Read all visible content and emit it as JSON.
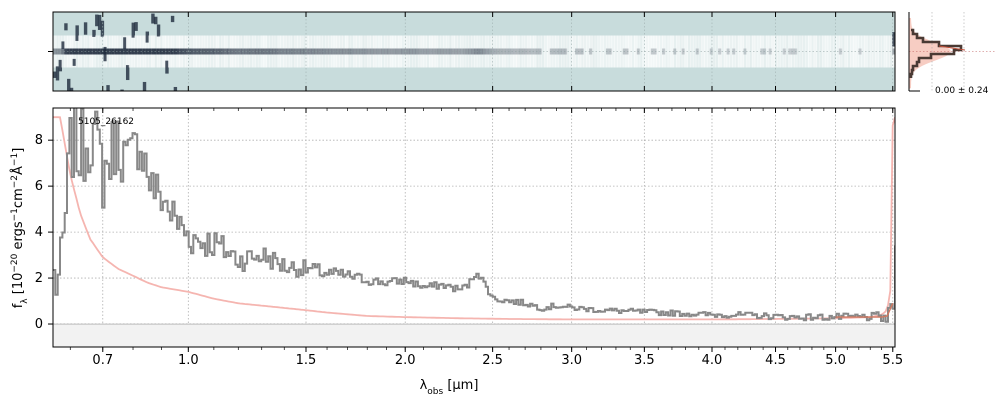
{
  "chart_data": [
    {
      "type": "heatmap",
      "panel": "2d-spectrum",
      "description_free": true,
      "colors": {
        "background": "#c8dcdc",
        "dark": "#1e2a3c",
        "light": "#ffffff"
      },
      "trace_row_fraction": 0.5
    },
    {
      "type": "line",
      "panel": "spatial-profile",
      "annotation": "0.00 ± 0.24",
      "colors": {
        "model": "#f4b8aa",
        "profile": "#4a3a34",
        "data": "#c0503a"
      }
    },
    {
      "type": "line",
      "panel": "1d-spectrum",
      "object_label": "5105_26162",
      "xlabel_html": "λ<tspan baseline-shift=\"sub\" font-size=\"9\">obs</tspan> [μm]",
      "ylabel_html": "f<tspan baseline-shift=\"sub\" font-size=\"9\">λ</tspan> [10<tspan baseline-shift=\"super\" font-size=\"9\">−20</tspan> ergs<tspan baseline-shift=\"super\" font-size=\"9\">−1</tspan>cm<tspan baseline-shift=\"super\" font-size=\"9\">−2</tspan>Å<tspan baseline-shift=\"super\" font-size=\"9\">−1</tspan>]",
      "xscale": "sqrt",
      "xlim": [
        0.55,
        5.52
      ],
      "ylim": [
        -1.0,
        9.4
      ],
      "xticks": [
        0.7,
        1.0,
        1.5,
        2.0,
        2.5,
        3.0,
        3.5,
        4.0,
        4.5,
        5.0,
        5.5
      ],
      "xtick_labels": [
        "0.7",
        "1.0",
        "1.5",
        "2.0",
        "2.5",
        "3.0",
        "3.5",
        "4.0",
        "4.5",
        "5.0",
        "5.5"
      ],
      "yticks": [
        0,
        2,
        4,
        6,
        8
      ],
      "ytick_labels": [
        "0",
        "2",
        "4",
        "6",
        "8"
      ],
      "grid": true,
      "colors": {
        "data": "#888888",
        "error": "#f5b5b0",
        "model": "#d07860",
        "zero": "#999999"
      },
      "series": [
        {
          "role": "flux",
          "x": [
            0.57,
            0.6,
            0.63,
            0.66,
            0.7,
            0.74,
            0.78,
            0.82,
            0.86,
            0.9,
            0.95,
            1.0,
            1.05,
            1.1,
            1.2,
            1.3,
            1.4,
            1.5,
            1.6,
            1.7,
            1.8,
            1.9,
            2.0,
            2.1,
            2.2,
            2.3,
            2.35,
            2.4,
            2.5,
            2.6,
            2.7,
            2.8,
            2.9,
            3.0,
            3.2,
            3.4,
            3.6,
            3.8,
            4.0,
            4.2,
            4.4,
            4.6,
            4.8,
            5.0,
            5.2,
            5.4,
            5.47,
            5.5
          ],
          "y": [
            2.0,
            8.0,
            7.5,
            8.5,
            6.5,
            8.0,
            7.0,
            8.0,
            6.0,
            5.5,
            4.5,
            3.8,
            3.6,
            3.5,
            2.8,
            3.0,
            2.5,
            2.4,
            2.2,
            2.1,
            1.9,
            1.8,
            1.9,
            1.6,
            1.7,
            1.5,
            1.7,
            2.3,
            1.1,
            1.0,
            0.9,
            0.7,
            0.8,
            0.7,
            0.6,
            0.55,
            0.5,
            0.45,
            0.4,
            0.4,
            0.35,
            0.3,
            0.3,
            0.3,
            0.3,
            0.3,
            0.2,
            1.8
          ]
        },
        {
          "role": "uncertainty",
          "x": [
            0.57,
            0.6,
            0.63,
            0.66,
            0.7,
            0.75,
            0.8,
            0.85,
            0.9,
            0.95,
            1.0,
            1.1,
            1.2,
            1.4,
            1.6,
            1.8,
            2.0,
            2.3,
            2.6,
            3.0,
            3.5,
            4.0,
            4.5,
            5.0,
            5.3,
            5.4,
            5.45,
            5.48,
            5.5
          ],
          "y": [
            9.0,
            6.5,
            4.8,
            3.7,
            2.9,
            2.4,
            2.1,
            1.8,
            1.6,
            1.5,
            1.4,
            1.1,
            0.9,
            0.7,
            0.5,
            0.35,
            0.3,
            0.25,
            0.22,
            0.2,
            0.2,
            0.2,
            0.22,
            0.25,
            0.3,
            0.4,
            0.6,
            1.5,
            9.0
          ]
        },
        {
          "role": "model",
          "x": [
            5.0,
            5.1,
            5.2,
            5.3,
            5.4,
            5.45,
            5.5
          ],
          "y": [
            0.3,
            0.3,
            0.3,
            0.3,
            0.3,
            0.35,
            0.9
          ]
        }
      ]
    }
  ]
}
